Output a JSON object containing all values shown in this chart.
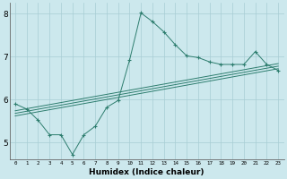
{
  "xlabel": "Humidex (Indice chaleur)",
  "bg_color": "#cce8ed",
  "line_color": "#2d7d6e",
  "grid_color": "#a8cdd4",
  "xlim": [
    -0.5,
    23.5
  ],
  "ylim": [
    4.6,
    8.25
  ],
  "yticks": [
    5,
    6,
    7,
    8
  ],
  "xticks": [
    0,
    1,
    2,
    3,
    4,
    5,
    6,
    7,
    8,
    9,
    10,
    11,
    12,
    13,
    14,
    15,
    16,
    17,
    18,
    19,
    20,
    21,
    22,
    23
  ],
  "series": [
    {
      "x": [
        0,
        1,
        2,
        3,
        4,
        5,
        6,
        7,
        8,
        9,
        10,
        11,
        12,
        13,
        14,
        15,
        16,
        17,
        18,
        19,
        20,
        21,
        22,
        23
      ],
      "y": [
        5.9,
        5.78,
        5.52,
        5.18,
        5.18,
        4.72,
        5.18,
        5.38,
        5.82,
        5.98,
        6.92,
        8.02,
        7.82,
        7.58,
        7.28,
        7.02,
        6.98,
        6.88,
        6.82,
        6.82,
        6.82,
        7.12,
        6.82,
        6.68
      ]
    },
    {
      "x": [
        0,
        23
      ],
      "y": [
        5.62,
        6.72
      ]
    },
    {
      "x": [
        0,
        23
      ],
      "y": [
        5.68,
        6.78
      ]
    },
    {
      "x": [
        0,
        23
      ],
      "y": [
        5.74,
        6.84
      ]
    }
  ]
}
